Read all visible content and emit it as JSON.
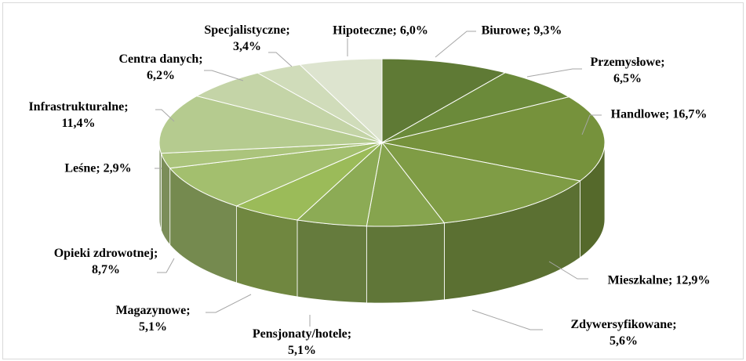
{
  "chart_data": {
    "type": "pie3d",
    "categories": [
      "Biurowe",
      "Przemysłowe",
      "Handlowe",
      "Mieszkalne",
      "Zdywersyfikowane",
      "Pensjonaty/hotele",
      "Magazynowe",
      "Opieki zdrowotnej",
      "Leśne",
      "Infrastrukturalne",
      "Centra danych",
      "Specjalistyczne",
      "Hipoteczne"
    ],
    "values": [
      9.3,
      6.5,
      16.7,
      12.9,
      5.6,
      5.1,
      5.1,
      8.7,
      2.9,
      11.4,
      6.2,
      3.4,
      6.0
    ],
    "value_labels": [
      "9,3%",
      "6,5%",
      "16,7%",
      "12,9%",
      "5,6%",
      "5,1%",
      "5,1%",
      "8,7%",
      "2,9%",
      "11,4%",
      "6,2%",
      "3,4%",
      "6,0%"
    ],
    "label_separator": "; ",
    "colors": [
      "#5f7a35",
      "#6b8a3a",
      "#76923c",
      "#7f9c45",
      "#86a44e",
      "#8cab55",
      "#9bbb59",
      "#a3bf6e",
      "#abc47c",
      "#b5cb8f",
      "#c4d4a7",
      "#d0dcba",
      "#dde4cf"
    ]
  }
}
